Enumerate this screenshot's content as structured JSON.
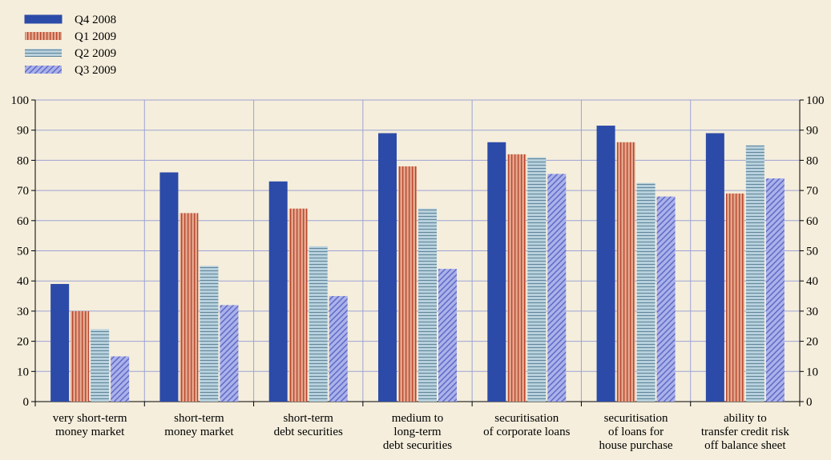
{
  "chart_data": {
    "type": "bar",
    "categories": [
      [
        "very short-term",
        "money market"
      ],
      [
        "short-term",
        "money market"
      ],
      [
        "short-term",
        "debt securities"
      ],
      [
        "medium to",
        "long-term",
        "debt securities"
      ],
      [
        "securitisation",
        "of corporate loans"
      ],
      [
        "securitisation",
        "of loans for",
        "house purchase"
      ],
      [
        "ability to",
        "transfer credit risk",
        "off balance sheet"
      ]
    ],
    "series": [
      {
        "name": "Q4 2008",
        "color": "#2c4ba8",
        "pattern": "solid",
        "values": [
          39,
          76,
          73,
          89,
          86,
          91.5,
          89
        ]
      },
      {
        "name": "Q1 2009",
        "color": "#d9967a",
        "pattern": "vertical",
        "values": [
          30,
          62.5,
          64,
          78,
          82,
          86,
          69
        ]
      },
      {
        "name": "Q2 2009",
        "color": "#a9c6d6",
        "pattern": "horizontal",
        "values": [
          24,
          45,
          51.5,
          64,
          81,
          72.5,
          85
        ]
      },
      {
        "name": "Q3 2009",
        "color": "#9aa3e0",
        "pattern": "diagonal",
        "values": [
          15,
          32,
          35,
          44,
          75.5,
          68,
          74
        ]
      }
    ],
    "yticks": [
      0,
      10,
      20,
      30,
      40,
      50,
      60,
      70,
      80,
      90,
      100
    ],
    "ylim": [
      0,
      100
    ],
    "grid": true,
    "legend_position": "top-left",
    "title": "",
    "xlabel": "",
    "ylabel": ""
  }
}
